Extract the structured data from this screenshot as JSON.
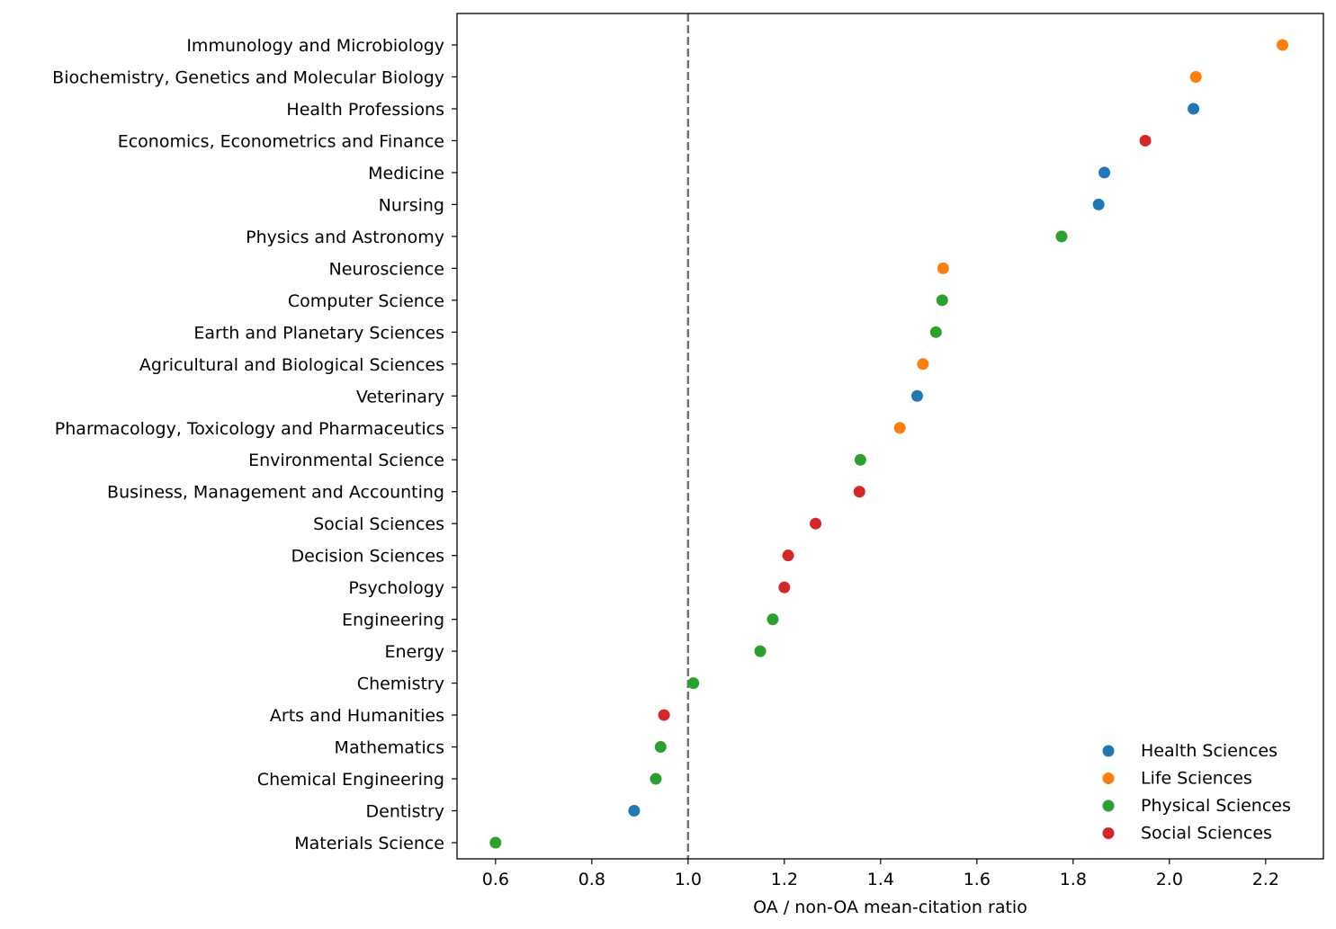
{
  "chart_data": {
    "type": "scatter",
    "title": "",
    "xlabel": "OA / non-OA mean-citation ratio",
    "ylabel": "",
    "xlim": [
      0.52,
      2.32
    ],
    "x_ticks": [
      "0.6",
      "0.8",
      "1.0",
      "1.2",
      "1.4",
      "1.6",
      "1.8",
      "2.0",
      "2.2"
    ],
    "x_tick_values": [
      0.6,
      0.8,
      1.0,
      1.2,
      1.4,
      1.6,
      1.8,
      2.0,
      2.2
    ],
    "reference_line": {
      "x": 1.0,
      "style": "dashed",
      "color": "#707070"
    },
    "grid": false,
    "legend": {
      "placement": "bottom-right",
      "frame": false
    },
    "series_colors": {
      "Health Sciences": "#1f77b4",
      "Life Sciences": "#ff7f0e",
      "Physical Sciences": "#2ca02c",
      "Social Sciences": "#d62728"
    },
    "series": [
      {
        "name": "Health Sciences",
        "color": "#1f77b4"
      },
      {
        "name": "Life Sciences",
        "color": "#ff7f0e"
      },
      {
        "name": "Physical Sciences",
        "color": "#2ca02c"
      },
      {
        "name": "Social Sciences",
        "color": "#d62728"
      }
    ],
    "points": [
      {
        "category": "Immunology and Microbiology",
        "x": 2.235,
        "group": "Life Sciences"
      },
      {
        "category": "Biochemistry, Genetics and Molecular Biology",
        "x": 2.055,
        "group": "Life Sciences"
      },
      {
        "category": "Health Professions",
        "x": 2.05,
        "group": "Health Sciences"
      },
      {
        "category": "Economics, Econometrics and Finance",
        "x": 1.95,
        "group": "Social Sciences"
      },
      {
        "category": "Medicine",
        "x": 1.865,
        "group": "Health Sciences"
      },
      {
        "category": "Nursing",
        "x": 1.853,
        "group": "Health Sciences"
      },
      {
        "category": "Physics and Astronomy",
        "x": 1.776,
        "group": "Physical Sciences"
      },
      {
        "category": "Neuroscience",
        "x": 1.53,
        "group": "Life Sciences"
      },
      {
        "category": "Computer Science",
        "x": 1.528,
        "group": "Physical Sciences"
      },
      {
        "category": "Earth and Planetary Sciences",
        "x": 1.515,
        "group": "Physical Sciences"
      },
      {
        "category": "Agricultural and Biological Sciences",
        "x": 1.488,
        "group": "Life Sciences"
      },
      {
        "category": "Veterinary",
        "x": 1.476,
        "group": "Health Sciences"
      },
      {
        "category": "Pharmacology, Toxicology and Pharmaceutics",
        "x": 1.44,
        "group": "Life Sciences"
      },
      {
        "category": "Environmental Science",
        "x": 1.358,
        "group": "Physical Sciences"
      },
      {
        "category": "Business, Management and Accounting",
        "x": 1.356,
        "group": "Social Sciences"
      },
      {
        "category": "Social Sciences",
        "x": 1.265,
        "group": "Social Sciences"
      },
      {
        "category": "Decision Sciences",
        "x": 1.208,
        "group": "Social Sciences"
      },
      {
        "category": "Psychology",
        "x": 1.2,
        "group": "Social Sciences"
      },
      {
        "category": "Engineering",
        "x": 1.176,
        "group": "Physical Sciences"
      },
      {
        "category": "Energy",
        "x": 1.15,
        "group": "Physical Sciences"
      },
      {
        "category": "Chemistry",
        "x": 1.011,
        "group": "Physical Sciences"
      },
      {
        "category": "Arts and Humanities",
        "x": 0.95,
        "group": "Social Sciences"
      },
      {
        "category": "Mathematics",
        "x": 0.943,
        "group": "Physical Sciences"
      },
      {
        "category": "Chemical Engineering",
        "x": 0.933,
        "group": "Physical Sciences"
      },
      {
        "category": "Dentistry",
        "x": 0.888,
        "group": "Health Sciences"
      },
      {
        "category": "Materials Science",
        "x": 0.6,
        "group": "Physical Sciences"
      }
    ]
  }
}
